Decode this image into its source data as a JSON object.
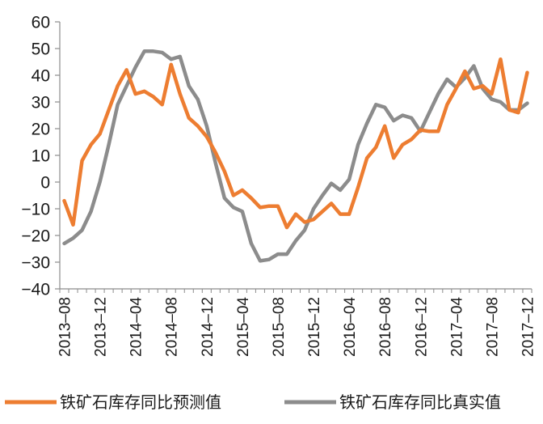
{
  "chart_data": {
    "type": "line",
    "title": "",
    "xlabel": "",
    "ylabel": "",
    "ylim": [
      -40,
      60
    ],
    "yticks": [
      -40,
      -30,
      -20,
      -10,
      0,
      10,
      20,
      30,
      40,
      50,
      60
    ],
    "ytick_labels": [
      "−40",
      "−30",
      "−20",
      "−10",
      "0",
      "10",
      "20",
      "30",
      "40",
      "50",
      "60"
    ],
    "x_tick_labels": [
      "2013–08",
      "2013–12",
      "2014–04",
      "2014–08",
      "2014–12",
      "2015–04",
      "2015–08",
      "2015–12",
      "2016–04",
      "2016–08",
      "2016–12",
      "2017–04",
      "2017–08",
      "2017–12"
    ],
    "x_tick_positions": [
      0,
      4,
      8,
      12,
      16,
      20,
      24,
      28,
      32,
      36,
      40,
      44,
      48,
      52
    ],
    "grid": false,
    "legend": "bottom",
    "series": [
      {
        "name": "铁矿石库存同比预测值",
        "color": "#ED7D31",
        "values": [
          -7,
          -16,
          8,
          14,
          18,
          27,
          36,
          42,
          33,
          34,
          32,
          29,
          44,
          33,
          24,
          21,
          17,
          11,
          4,
          -5,
          -3,
          -6,
          -9.5,
          -9,
          -9,
          -17,
          -12,
          -15,
          -14,
          -11,
          -8,
          -12,
          -12,
          -2,
          9,
          13,
          21,
          9,
          14,
          16,
          19.5,
          19,
          19,
          29,
          35,
          41.5,
          35,
          36,
          33,
          46,
          27,
          26,
          41
        ]
      },
      {
        "name": "铁矿石库存同比真实值",
        "color": "#8C8C8C",
        "values": [
          -23,
          -21,
          -18,
          -11,
          0,
          14,
          29,
          36,
          43,
          49,
          49,
          48.5,
          46,
          47,
          36,
          31,
          21,
          7,
          -6,
          -9.5,
          -11,
          -23,
          -29.5,
          -29,
          -27,
          -27,
          -22,
          -18,
          -10,
          -5,
          -0.5,
          -3,
          1,
          14,
          22,
          29,
          28,
          23,
          25,
          24,
          19,
          26,
          33,
          38.5,
          35.5,
          39,
          43.5,
          35,
          31,
          30,
          27,
          27,
          29.5
        ]
      }
    ]
  }
}
